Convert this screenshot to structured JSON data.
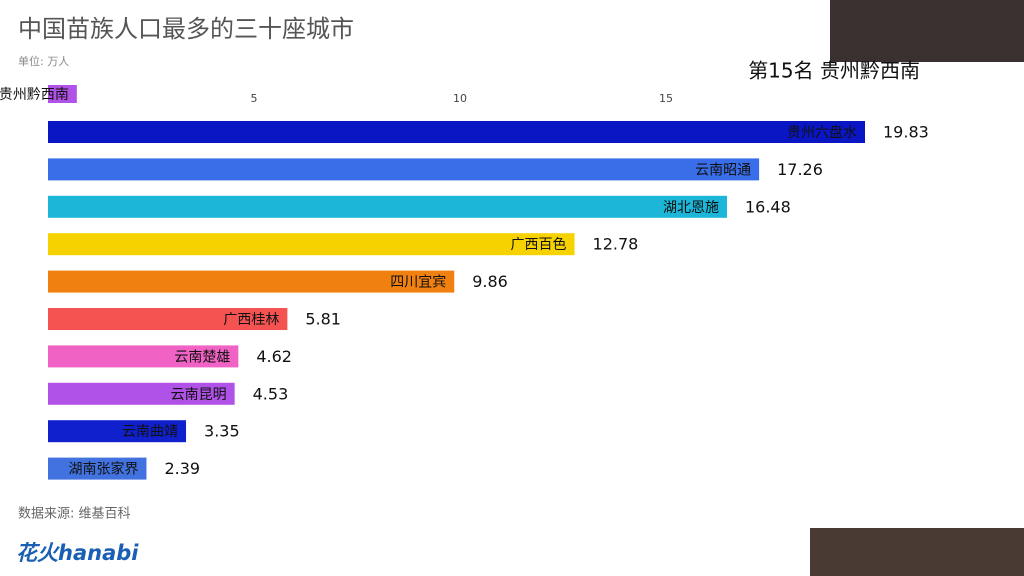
{
  "chart_data": {
    "type": "bar",
    "orientation": "horizontal",
    "title": "中国苗族人口最多的三十座城市",
    "subtitle": "单位: 万人",
    "annotation": "第15名 贵州黔西南",
    "source": "数据来源: 维基百科",
    "logo": "花火hanabi",
    "categories": [
      "贵州六盘水",
      "云南昭通",
      "湖北恩施",
      "广西百色",
      "四川宜宾",
      "广西桂林",
      "云南楚雄",
      "云南昆明",
      "云南曲靖",
      "湖南张家界",
      "贵州黔西南"
    ],
    "values": [
      19.83,
      17.26,
      16.48,
      12.78,
      9.86,
      5.81,
      4.62,
      4.53,
      3.35,
      2.39,
      0.7
    ],
    "value_labels": [
      "19.83",
      "17.26",
      "16.48",
      "12.78",
      "9.86",
      "5.81",
      "4.62",
      "4.53",
      "3.35",
      "2.39",
      null
    ],
    "colors": [
      "#0a16c4",
      "#3a6ee8",
      "#1bb6d8",
      "#f6d200",
      "#f0800f",
      "#f55252",
      "#f062c4",
      "#b052e8",
      "#1020cc",
      "#4272e0",
      "#b052e8"
    ],
    "xlim": [
      0,
      19.83
    ],
    "xticks": [
      5,
      10,
      15
    ]
  }
}
